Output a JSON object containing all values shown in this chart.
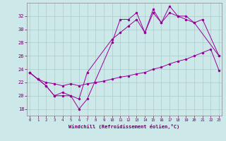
{
  "bg_color": "#cce8e8",
  "grid_color": "#aacccc",
  "line_color": "#990099",
  "xlabel": "Windchill (Refroidissement éolien,°C)",
  "x_ticks": [
    0,
    1,
    2,
    3,
    4,
    5,
    6,
    7,
    8,
    9,
    10,
    11,
    12,
    13,
    14,
    15,
    16,
    17,
    18,
    19,
    20,
    21,
    22,
    23
  ],
  "y_ticks": [
    18,
    20,
    22,
    24,
    26,
    28,
    30,
    32
  ],
  "ylim": [
    17.0,
    34.0
  ],
  "xlim": [
    -0.3,
    23.3
  ],
  "line1_x": [
    0,
    1,
    2,
    3,
    4,
    5,
    6,
    7,
    10,
    11,
    12,
    13,
    14,
    15,
    16,
    17,
    18,
    19,
    20,
    21,
    23
  ],
  "line1_y": [
    23.5,
    22.5,
    21.5,
    20.0,
    20.0,
    20.0,
    18.0,
    19.5,
    28.0,
    31.5,
    31.5,
    32.5,
    29.5,
    33.0,
    31.0,
    33.5,
    32.0,
    32.0,
    31.0,
    31.5,
    26.0
  ],
  "line2_x": [
    0,
    1,
    2,
    3,
    4,
    5,
    6,
    7,
    10,
    11,
    12,
    13,
    14,
    15,
    16,
    17,
    18,
    19,
    20,
    23
  ],
  "line2_y": [
    23.5,
    22.5,
    21.5,
    20.0,
    20.5,
    20.0,
    19.5,
    23.5,
    28.5,
    29.5,
    30.5,
    31.5,
    29.5,
    32.5,
    31.0,
    32.5,
    32.0,
    31.5,
    31.0,
    26.0
  ],
  "line3_x": [
    0,
    1,
    2,
    3,
    4,
    5,
    6,
    7,
    8,
    9,
    10,
    11,
    12,
    13,
    14,
    15,
    16,
    17,
    18,
    19,
    20,
    21,
    22,
    23
  ],
  "line3_y": [
    23.5,
    22.5,
    22.0,
    21.8,
    21.5,
    21.8,
    21.5,
    21.8,
    22.0,
    22.2,
    22.5,
    22.8,
    23.0,
    23.3,
    23.5,
    24.0,
    24.3,
    24.8,
    25.2,
    25.5,
    26.0,
    26.5,
    27.0,
    23.8
  ],
  "marker_size": 2.5,
  "lw": 0.7
}
